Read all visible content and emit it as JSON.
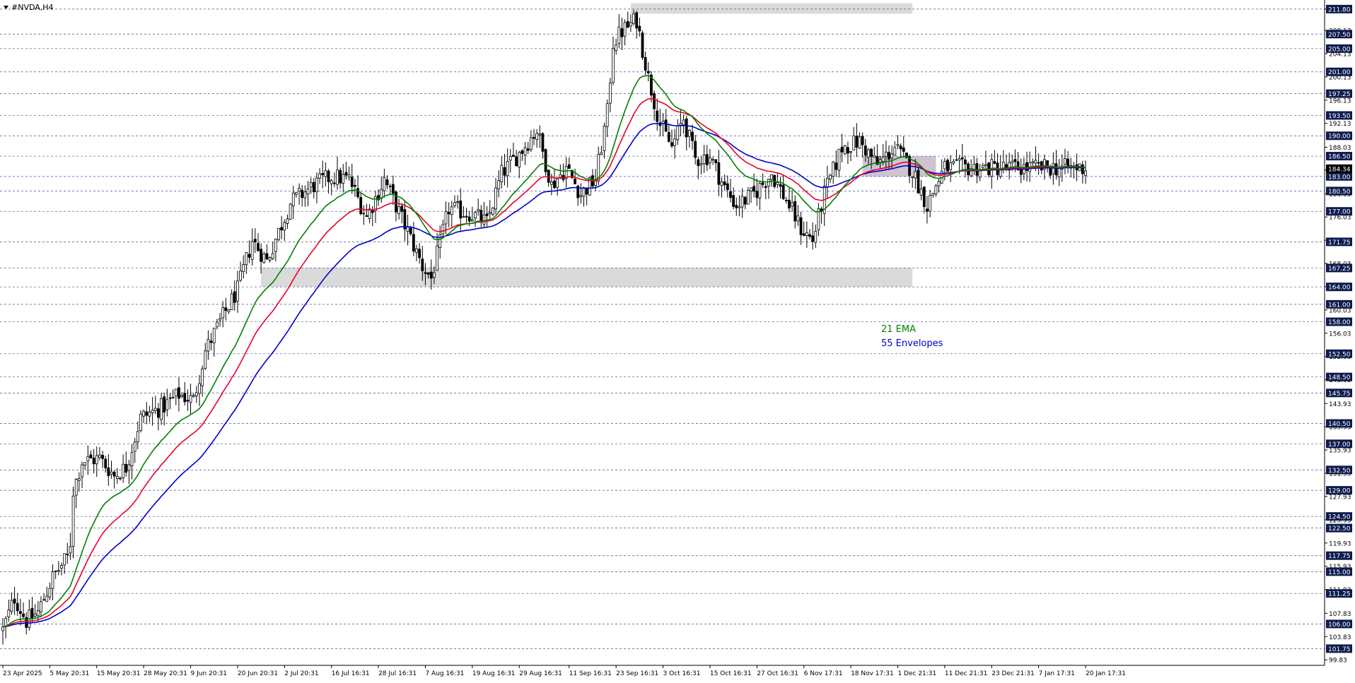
{
  "window": {
    "title": "#NVDA,H4"
  },
  "chart_data": {
    "type": "candlestick",
    "symbol": "#NVDA",
    "timeframe": "H4",
    "ylim": [
      99.0,
      213.0
    ],
    "price_labels": [
      99.83,
      103.83,
      107.83,
      111.93,
      115.93,
      119.93,
      123.93,
      127.93,
      131.93,
      135.93,
      139.93,
      143.93,
      148.03,
      152.03,
      156.03,
      160.03,
      164.03,
      168.03,
      172.03,
      176.03,
      180.03,
      184.13,
      188.03,
      192.13,
      196.13,
      200.13,
      204.13,
      208.13,
      211.8
    ],
    "levels": [
      211.8,
      207.5,
      205.0,
      201.0,
      197.25,
      193.5,
      190.0,
      186.5,
      183.0,
      180.5,
      177.0,
      171.75,
      167.25,
      164.0,
      161.0,
      158.0,
      152.5,
      148.5,
      145.75,
      140.5,
      137.0,
      132.5,
      129.0,
      124.5,
      122.5,
      117.75,
      115.0,
      111.25,
      106.0,
      101.75
    ],
    "current_price": 184.34,
    "x_labels": [
      "23 Apr 2025",
      "5 May 20:31",
      "15 May 20:31",
      "28 May 20:31",
      "9 Jun 20:31",
      "20 Jun 20:31",
      "2 Jul 20:31",
      "16 Jul 16:31",
      "28 Jul 16:31",
      "7 Aug 16:31",
      "19 Aug 16:31",
      "29 Aug 16:31",
      "11 Sep 16:31",
      "23 Sep 16:31",
      "3 Oct 16:31",
      "15 Oct 16:31",
      "27 Oct 16:31",
      "6 Nov 17:31",
      "18 Nov 17:31",
      "1 Dec 21:31",
      "11 Dec 21:31",
      "23 Dec 21:31",
      "7 Jan 17:31",
      "20 Jan 17:31"
    ],
    "candle_count": 370,
    "price_path": [
      [
        0,
        105.0
      ],
      [
        4,
        110.5
      ],
      [
        8,
        106.5
      ],
      [
        12,
        108.0
      ],
      [
        17,
        114.0
      ],
      [
        22,
        117.5
      ],
      [
        23,
        120.0
      ],
      [
        24,
        129.0
      ],
      [
        27,
        134.0
      ],
      [
        33,
        134.5
      ],
      [
        38,
        131.5
      ],
      [
        42,
        133.0
      ],
      [
        47,
        141.5
      ],
      [
        55,
        143.5
      ],
      [
        60,
        145.5
      ],
      [
        65,
        144.5
      ],
      [
        69,
        153.0
      ],
      [
        74,
        158.0
      ],
      [
        80,
        163.5
      ],
      [
        85,
        172.0
      ],
      [
        90,
        168.5
      ],
      [
        98,
        178.5
      ],
      [
        106,
        181.5
      ],
      [
        112,
        183.0
      ],
      [
        118,
        182.5
      ],
      [
        124,
        176.0
      ],
      [
        130,
        182.5
      ],
      [
        138,
        173.5
      ],
      [
        143,
        167.5
      ],
      [
        146,
        165.5
      ],
      [
        152,
        177.5
      ],
      [
        160,
        176.5
      ],
      [
        165,
        175.0
      ],
      [
        170,
        183.5
      ],
      [
        176,
        187.0
      ],
      [
        182,
        191.0
      ],
      [
        187,
        181.5
      ],
      [
        192,
        184.5
      ],
      [
        197,
        180.0
      ],
      [
        202,
        182.5
      ],
      [
        206,
        194.0
      ],
      [
        208,
        206.0
      ],
      [
        211,
        208.0
      ],
      [
        216,
        210.0
      ],
      [
        220,
        200.0
      ],
      [
        224,
        192.0
      ],
      [
        228,
        188.0
      ],
      [
        232,
        193.0
      ],
      [
        236,
        186.0
      ],
      [
        241,
        186.5
      ],
      [
        246,
        181.0
      ],
      [
        250,
        178.0
      ],
      [
        256,
        180.0
      ],
      [
        262,
        183.5
      ],
      [
        268,
        178.0
      ],
      [
        272,
        174.0
      ],
      [
        276,
        172.0
      ],
      [
        280,
        180.0
      ],
      [
        286,
        188.0
      ],
      [
        292,
        189.0
      ],
      [
        298,
        185.0
      ],
      [
        304,
        188.0
      ],
      [
        310,
        184.0
      ],
      [
        315,
        178.0
      ],
      [
        318,
        181.5
      ],
      [
        321,
        184.5
      ]
    ],
    "indicators": [
      {
        "name": "21 EMA",
        "color": "#008000",
        "period": 21
      },
      {
        "name": "55 Envelopes",
        "color": "#0000cc",
        "period": 55
      }
    ],
    "zones": [
      {
        "from": 211.0,
        "to": 212.8,
        "color": "#d3d3d3",
        "start": 214,
        "end": 310
      },
      {
        "from": 164.0,
        "to": 167.3,
        "color": "#d3d3d3",
        "start": 88,
        "end": 310
      },
      {
        "from": 183.0,
        "to": 186.5,
        "color": "#c8b8c8",
        "start": 293,
        "end": 318
      }
    ],
    "colors": {
      "grid": "#1a237e",
      "label_box": "#0d1b4d",
      "label_text": "#ffffff",
      "ema_mid": "#e8002a"
    }
  }
}
